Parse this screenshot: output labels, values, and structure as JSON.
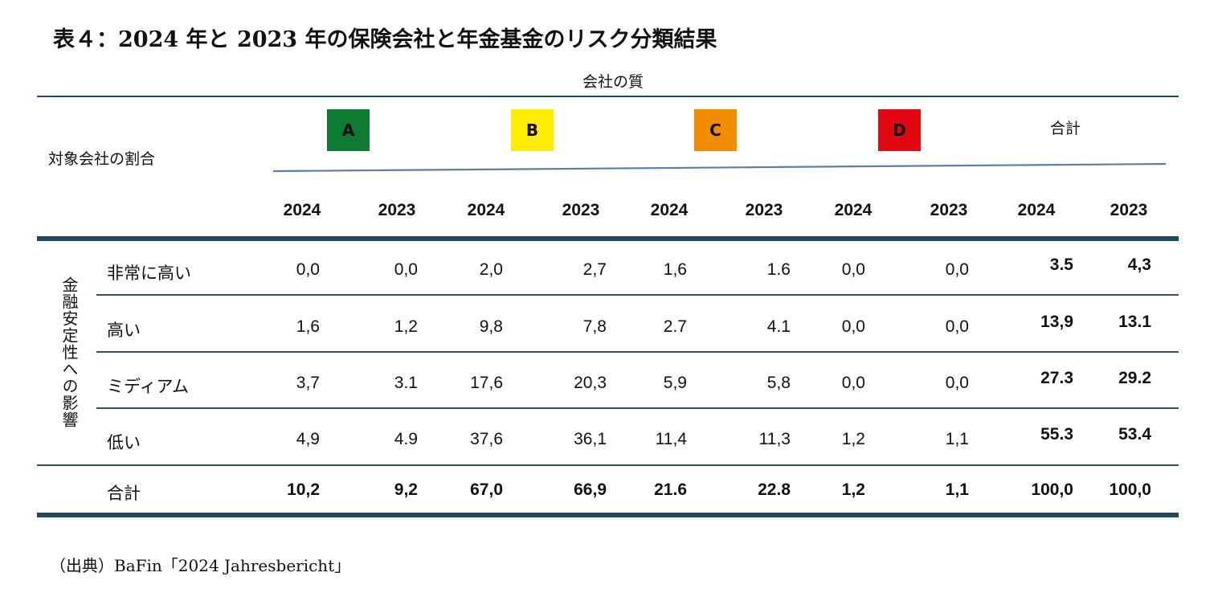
{
  "title": "表４：2024 年と 2023 年の保険会社と年金基金のリスク分類結果",
  "quality_label": "会社の質",
  "ratio_label": "対象会社の割合",
  "vertical_label": "金融安定性への影響",
  "categories": [
    {
      "label": "A",
      "color": "#0f7a33"
    },
    {
      "label": "B",
      "color": "#ffec00"
    },
    {
      "label": "C",
      "color": "#f28c00"
    },
    {
      "label": "D",
      "color": "#e30613"
    }
  ],
  "total_header": "合計",
  "years": [
    "2024",
    "2023",
    "2024",
    "2023",
    "2024",
    "2023",
    "2024",
    "2023",
    "2024",
    "2023"
  ],
  "rows": [
    {
      "label": "非常に高い",
      "values": [
        "0,0",
        "0,0",
        "2,0",
        "2,7",
        "1,6",
        "1.6",
        "0,0",
        "0,0"
      ],
      "totals": [
        "3.5",
        "4,3"
      ]
    },
    {
      "label": "高い",
      "values": [
        "1,6",
        "1,2",
        "9,8",
        "7,8",
        "2.7",
        "4.1",
        "0,0",
        "0,0"
      ],
      "totals": [
        "13,9",
        "13.1"
      ]
    },
    {
      "label": "ミディアム",
      "values": [
        "3,7",
        "3.1",
        "17,6",
        "20,3",
        "5,9",
        "5,8",
        "0,0",
        "0,0"
      ],
      "totals": [
        "27.3",
        "29.2"
      ]
    },
    {
      "label": "低い",
      "values": [
        "4,9",
        "4.9",
        "37,6",
        "36,1",
        "11,4",
        "11,3",
        "1,2",
        "1,1"
      ],
      "totals": [
        "55.3",
        "53.4"
      ]
    }
  ],
  "total_row": {
    "label": "合計",
    "values": [
      "10,2",
      "9,2",
      "67,0",
      "66,9",
      "21.6",
      "22.8",
      "1,2",
      "1,1",
      "100,0",
      "100,0"
    ]
  },
  "source": "（出典）BaFin「2024 Jahresbericht」"
}
